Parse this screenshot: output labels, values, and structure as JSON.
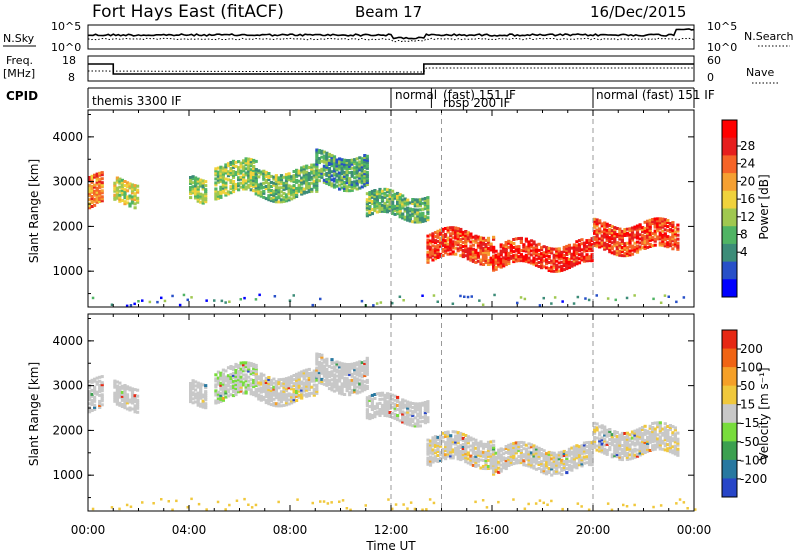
{
  "header": {
    "station": "Fort Hays East (fitACF)",
    "beam": "Beam 17",
    "date": "16/Dec/2015"
  },
  "noise_panel": {
    "left_label": "N.Sky",
    "left_ticks": [
      "10^5",
      "10^0"
    ],
    "right_label": "N.Search",
    "right_ticks": [
      "10^5",
      "10^0"
    ]
  },
  "freq_panel": {
    "left_label_1": "Freq.",
    "left_label_2": "[MHz]",
    "left_ticks": [
      "18",
      "8"
    ],
    "right_label": "Nave",
    "right_ticks": [
      "60",
      "0"
    ]
  },
  "cpid_panel": {
    "label": "CPID",
    "segments": [
      {
        "text": "themis 3300 IF",
        "start": 0
      },
      {
        "text": "normal",
        "start": 12
      },
      {
        "text": "(fast) 151 IF",
        "start": 13.6
      },
      {
        "text": "rbsp 200 IF",
        "start": 13.6
      },
      {
        "text": "normal (fast) 151 IF",
        "start": 20
      }
    ]
  },
  "x_axis": {
    "label": "Time UT",
    "ticks": [
      "00:00",
      "04:00",
      "08:00",
      "12:00",
      "16:00",
      "20:00",
      "00:00"
    ],
    "range": [
      0,
      24
    ],
    "dashed_lines": [
      12,
      14,
      20
    ]
  },
  "power_panel": {
    "ylabel": "Slant Range [km]",
    "yticks": [
      "1000",
      "2000",
      "3000",
      "4000"
    ],
    "cbar_label": "Power [dB]",
    "cbar_ticks": [
      "28",
      "24",
      "20",
      "16",
      "12",
      "8",
      "4"
    ]
  },
  "velocity_panel": {
    "ylabel": "Slant Range [km]",
    "yticks": [
      "1000",
      "2000",
      "3000",
      "4000"
    ],
    "cbar_label": "Velocity [m s⁻¹]",
    "cbar_ticks": [
      "200",
      "100",
      "50",
      "15",
      "-15",
      "-50",
      "-100",
      "-200"
    ]
  },
  "chart_data": {
    "type": "heatmap",
    "x": "time (UT hours)",
    "xlim": [
      0,
      24
    ],
    "ylim": [
      200,
      4600
    ],
    "power_colors": [
      "#0000ff",
      "#2850c8",
      "#3c8c78",
      "#50b464",
      "#a0c850",
      "#f0d23c",
      "#f5a032",
      "#f56428",
      "#e61e1e",
      "#ff0000"
    ],
    "velocity_colors": [
      "#2846c8",
      "#2878a0",
      "#3ca050",
      "#78dc3c",
      "#c8c8c8",
      "#f0c83c",
      "#f5a028",
      "#f06414",
      "#e62814"
    ],
    "echo_regions": [
      {
        "t0": 0.0,
        "t1": 0.6,
        "r_center": 2800,
        "r_width": 700,
        "power": 22,
        "velocity": 0
      },
      {
        "t0": 1.0,
        "t1": 2.0,
        "r_center": 2800,
        "r_width": 500,
        "power": 16,
        "velocity": 0
      },
      {
        "t0": 4.0,
        "t1": 4.6,
        "r_center": 2900,
        "r_width": 500,
        "power": 14,
        "velocity": 0
      },
      {
        "t0": 5.0,
        "t1": 6.6,
        "r_center": 3100,
        "r_width": 700,
        "power": 14,
        "velocity": 10
      },
      {
        "t0": 6.6,
        "t1": 9.0,
        "r_center": 3000,
        "r_width": 600,
        "power": 12,
        "velocity": -5
      },
      {
        "t0": 9.0,
        "t1": 11.0,
        "r_center": 3300,
        "r_width": 700,
        "power": 10,
        "velocity": 0
      },
      {
        "t0": 11.0,
        "t1": 13.4,
        "r_center": 2500,
        "r_width": 500,
        "power": 12,
        "velocity": 0
      },
      {
        "t0": 13.4,
        "t1": 16.0,
        "r_center": 1600,
        "r_width": 600,
        "power": 26,
        "velocity": -5
      },
      {
        "t0": 16.0,
        "t1": 20.0,
        "r_center": 1400,
        "r_width": 500,
        "power": 27,
        "velocity": -5
      },
      {
        "t0": 20.0,
        "t1": 23.4,
        "r_center": 1800,
        "r_width": 600,
        "power": 26,
        "velocity": -5
      }
    ]
  }
}
